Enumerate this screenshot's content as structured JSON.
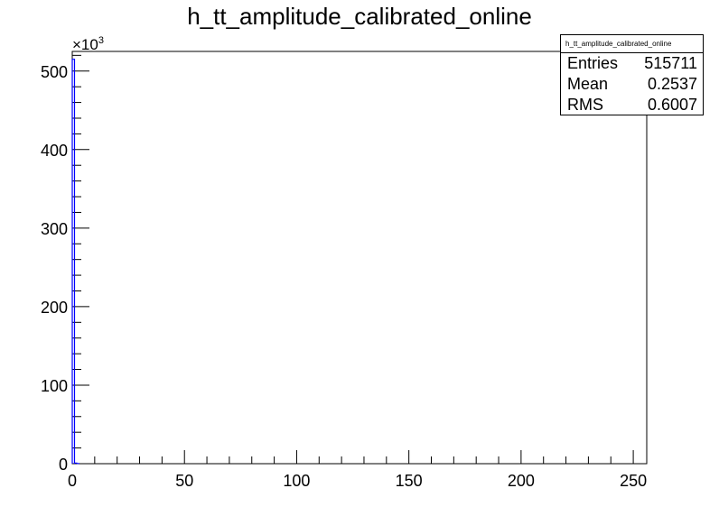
{
  "title": "h_tt_amplitude_calibrated_online",
  "stats": {
    "name": "h_tt_amplitude_calibrated_online",
    "entries_label": "Entries",
    "entries_value": "515711",
    "mean_label": "Mean",
    "mean_value": "0.2537",
    "rms_label": "RMS",
    "rms_value": "0.6007"
  },
  "chart_data": {
    "type": "bar",
    "title": "h_tt_amplitude_calibrated_online",
    "xlabel": "",
    "ylabel": "",
    "xlim": [
      0,
      256
    ],
    "ylim": [
      0,
      525
    ],
    "y_multiplier": "×10³",
    "x_ticks": [
      0,
      50,
      100,
      150,
      200,
      250
    ],
    "y_ticks": [
      0,
      100,
      200,
      300,
      400,
      500
    ],
    "bin_width": 1,
    "bins_x": [
      0,
      1,
      2
    ],
    "values": [
      515,
      0.8,
      0.2
    ],
    "line_color": "#0000ff",
    "grid": false,
    "legend": "top-right stats box"
  }
}
